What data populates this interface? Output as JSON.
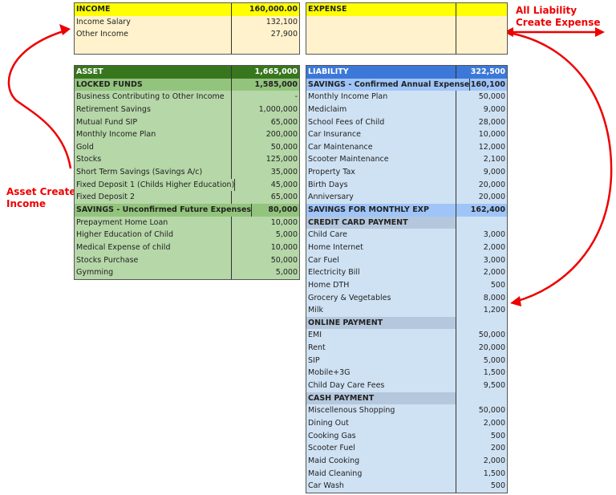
{
  "income": {
    "title": "INCOME",
    "total": "160,000.00",
    "items": [
      {
        "label": "Income Salary",
        "value": "132,100"
      },
      {
        "label": "Other Income",
        "value": "27,900"
      }
    ]
  },
  "expense": {
    "title": "EXPENSE"
  },
  "asset": {
    "title": "ASSET",
    "total": "1,665,000",
    "locked": {
      "label": "LOCKED FUNDS",
      "value": "1,585,000",
      "items": [
        {
          "label": "Business Contributing to Other Income",
          "value": "-"
        },
        {
          "label": "Retirement Savings",
          "value": "1,000,000"
        },
        {
          "label": "Mutual Fund SIP",
          "value": "65,000"
        },
        {
          "label": "Monthly Income Plan",
          "value": "200,000"
        },
        {
          "label": "Gold",
          "value": "50,000"
        },
        {
          "label": "Stocks",
          "value": "125,000"
        },
        {
          "label": "Short Term Savings (Savings A/c)",
          "value": "35,000"
        },
        {
          "label": "Fixed Deposit 1 (Childs Higher Education)",
          "value": "45,000"
        },
        {
          "label": "Fixed Deposit 2",
          "value": "65,000"
        }
      ]
    },
    "unconfirmed": {
      "label": "SAVINGS - Unconfirmed Future Expenses",
      "value": "80,000",
      "items": [
        {
          "label": "Prepayment Home Loan",
          "value": "10,000"
        },
        {
          "label": "Higher Education of Child",
          "value": "5,000"
        },
        {
          "label": "Medical Expense of child",
          "value": "10,000"
        },
        {
          "label": "Stocks Purchase",
          "value": "50,000"
        },
        {
          "label": "Gymming",
          "value": "5,000"
        }
      ]
    }
  },
  "liability": {
    "title": "LIABILITY",
    "total": "322,500",
    "annual": {
      "label": "SAVINGS - Confirmed Annual Expense",
      "value": "160,100",
      "items": [
        {
          "label": "Monthly Income Plan",
          "value": "50,000"
        },
        {
          "label": "Mediclaim",
          "value": "9,000"
        },
        {
          "label": "School Fees of Child",
          "value": "28,000"
        },
        {
          "label": "Car Insurance",
          "value": "10,000"
        },
        {
          "label": "Car Maintenance",
          "value": "12,000"
        },
        {
          "label": "Scooter Maintenance",
          "value": "2,100"
        },
        {
          "label": "Property Tax",
          "value": "9,000"
        },
        {
          "label": "Birth Days",
          "value": "20,000"
        },
        {
          "label": "Anniversary",
          "value": "20,000"
        }
      ]
    },
    "monthly": {
      "label": "SAVINGS FOR MONTHLY EXP",
      "value": "162,400"
    },
    "categories": [
      {
        "label": "CREDIT CARD PAYMENT",
        "items": [
          {
            "label": "Child Care",
            "value": "3,000"
          },
          {
            "label": "Home Internet",
            "value": "2,000"
          },
          {
            "label": "Car Fuel",
            "value": "3,000"
          },
          {
            "label": "Electricity Bill",
            "value": "2,000"
          },
          {
            "label": "Home DTH",
            "value": "500"
          },
          {
            "label": "Grocery & Vegetables",
            "value": "8,000"
          },
          {
            "label": "Milk",
            "value": "1,200"
          }
        ]
      },
      {
        "label": "ONLINE PAYMENT",
        "items": [
          {
            "label": "EMI",
            "value": "50,000"
          },
          {
            "label": "Rent",
            "value": "20,000"
          },
          {
            "label": "SIP",
            "value": "5,000"
          },
          {
            "label": "Mobile+3G",
            "value": "1,500"
          },
          {
            "label": "Child Day Care Fees",
            "value": "9,500"
          }
        ]
      },
      {
        "label": "CASH PAYMENT",
        "items": [
          {
            "label": "Miscellenous Shopping",
            "value": "50,000"
          },
          {
            "label": "Dining Out",
            "value": "2,000"
          },
          {
            "label": "Cooking Gas",
            "value": "500"
          },
          {
            "label": "Scooter Fuel",
            "value": "200"
          },
          {
            "label": "Maid Cooking",
            "value": "2,000"
          },
          {
            "label": "Maid Cleaning",
            "value": "1,500"
          },
          {
            "label": "Car Wash",
            "value": "500"
          }
        ]
      }
    ]
  },
  "annotations": {
    "asset_note": [
      "Asset Create",
      "Income"
    ],
    "liability_note": [
      "All Liability",
      "Create Expense"
    ]
  },
  "colors": {
    "income_header": "#ffff00",
    "asset_header": "#38761d",
    "liability_header": "#3c78d8",
    "arrow": "#e00000"
  }
}
